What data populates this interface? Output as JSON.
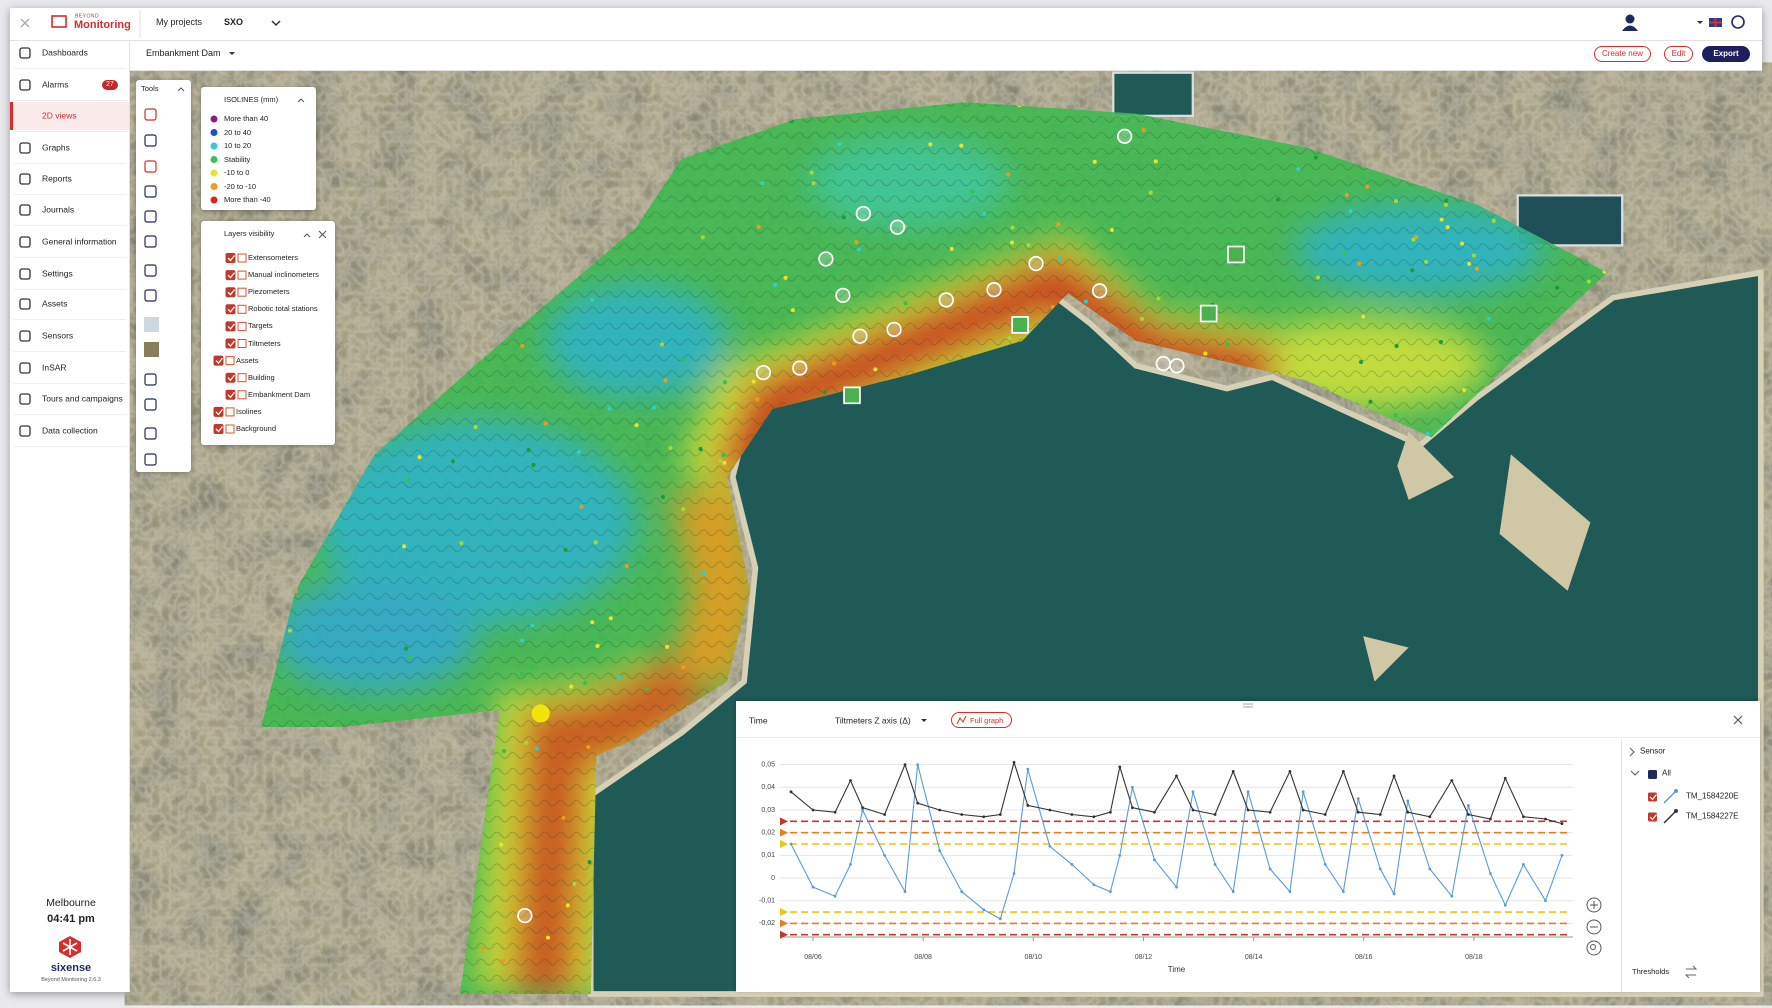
{
  "header": {
    "brand_tagline": "BEYOND",
    "brand": "Monitoring",
    "my_projects": "My projects",
    "project": "SXO"
  },
  "toolbar": {
    "view": "Embankment Dam",
    "actions": [
      "Create new",
      "Edit",
      "Export"
    ]
  },
  "sidebar": {
    "items": [
      {
        "label": "Dashboards"
      },
      {
        "label": "Alarms",
        "badge": "27"
      },
      {
        "label": "2D views",
        "active": true
      },
      {
        "label": "Graphs"
      },
      {
        "label": "Reports"
      },
      {
        "label": "Journals"
      },
      {
        "label": "General information"
      },
      {
        "label": "Settings"
      },
      {
        "label": "Assets"
      },
      {
        "label": "Sensors"
      },
      {
        "label": "InSAR"
      },
      {
        "label": "Tours and campaigns"
      },
      {
        "label": "Data collection"
      }
    ],
    "footer": {
      "city": "Melbourne",
      "time": "04:41 pm",
      "company": "sixense",
      "version": "Beyond Monitoring 2.6.3"
    }
  },
  "tools": {
    "title": "Tools"
  },
  "isolines": {
    "title": "ISOLINES (mm)",
    "items": [
      {
        "label": "More than 40",
        "color": "#8e1a7a"
      },
      {
        "label": "20 to 40",
        "color": "#1f4fc4"
      },
      {
        "label": "10 to 20",
        "color": "#35c7d6"
      },
      {
        "label": "Stability",
        "color": "#3fbf4f"
      },
      {
        "label": "-10 to 0",
        "color": "#e8e231"
      },
      {
        "label": "-20 to -10",
        "color": "#f29a1b"
      },
      {
        "label": "More than -40",
        "color": "#e0231c"
      }
    ]
  },
  "layers": {
    "title": "Layers visibility",
    "items": [
      {
        "label": "Extensometers",
        "level": 1,
        "checked": true
      },
      {
        "label": "Manual inclinometers",
        "level": 1,
        "checked": true
      },
      {
        "label": "Piezometers",
        "level": 1,
        "checked": true
      },
      {
        "label": "Robotic total stations",
        "level": 1,
        "checked": true
      },
      {
        "label": "Targets",
        "level": 1,
        "checked": true
      },
      {
        "label": "Tiltmeters",
        "level": 1,
        "checked": true
      },
      {
        "label": "Assets",
        "level": 0,
        "checked": true
      },
      {
        "label": "Building",
        "level": 1,
        "checked": true
      },
      {
        "label": "Embankment Dam",
        "level": 1,
        "checked": true
      },
      {
        "label": "Isolines",
        "level": 0,
        "checked": true
      },
      {
        "label": "Background",
        "level": 0,
        "checked": true
      }
    ]
  },
  "graph": {
    "time_tab": "Time",
    "measure": "Tiltmeters Z axis (Δ)",
    "full_graph": "Full graph",
    "sensor_title": "Sensor",
    "all": "All",
    "thresholds_label": "Thresholds",
    "chart_data": {
      "type": "line",
      "x_label": "Time",
      "x": [
        5.6,
        6.0,
        6.4,
        6.68,
        6.9,
        7.3,
        7.67,
        7.9,
        8.3,
        8.7,
        9.1,
        9.4,
        9.65,
        9.9,
        10.3,
        10.7,
        11.1,
        11.4,
        11.57,
        11.8,
        12.2,
        12.6,
        12.9,
        13.3,
        13.63,
        13.9,
        14.3,
        14.66,
        14.9,
        15.3,
        15.63,
        15.9,
        16.3,
        16.55,
        16.8,
        17.2,
        17.6,
        17.9,
        18.3,
        18.57,
        18.9,
        19.3,
        19.6
      ],
      "xlim": [
        5.4,
        19.8
      ],
      "xticks": [
        {
          "value": 6,
          "label": "08/06"
        },
        {
          "value": 8,
          "label": "08/08"
        },
        {
          "value": 10,
          "label": "08/10"
        },
        {
          "value": 12,
          "label": "08/12"
        },
        {
          "value": 14,
          "label": "08/14"
        },
        {
          "value": 16,
          "label": "08/16"
        },
        {
          "value": 18,
          "label": "08/18"
        }
      ],
      "ylim": [
        -0.026,
        0.056
      ],
      "yticks": [
        {
          "value": 0.05,
          "label": "0,05"
        },
        {
          "value": 0.04,
          "label": "0,04"
        },
        {
          "value": 0.03,
          "label": "0,03"
        },
        {
          "value": 0.02,
          "label": "0,02"
        },
        {
          "value": 0.01,
          "label": "0,01"
        },
        0,
        {
          "value": -0.01,
          "label": "-0,01"
        },
        {
          "value": -0.02,
          "label": "-0,02"
        }
      ],
      "grid": true,
      "series": [
        {
          "name": "TM_1584220E",
          "color": "#5b9bd5",
          "values": [
            0.015,
            -0.004,
            -0.008,
            0.006,
            0.03,
            0.01,
            -0.006,
            0.05,
            0.012,
            -0.006,
            -0.014,
            -0.018,
            0.002,
            0.048,
            0.014,
            0.006,
            -0.003,
            -0.006,
            0.01,
            0.04,
            0.008,
            -0.004,
            0.038,
            0.006,
            -0.006,
            0.038,
            0.004,
            -0.006,
            0.038,
            0.006,
            -0.006,
            0.035,
            0.004,
            -0.007,
            0.034,
            0.004,
            -0.008,
            0.032,
            0.002,
            -0.012,
            0.006,
            -0.01,
            0.01
          ]
        },
        {
          "name": "TM_1584227E",
          "color": "#333333",
          "values": [
            0.038,
            0.03,
            0.029,
            0.043,
            0.031,
            0.028,
            0.05,
            0.033,
            0.03,
            0.028,
            0.027,
            0.028,
            0.051,
            0.032,
            0.03,
            0.028,
            0.027,
            0.029,
            0.049,
            0.031,
            0.029,
            0.045,
            0.03,
            0.028,
            0.047,
            0.03,
            0.029,
            0.047,
            0.03,
            0.028,
            0.047,
            0.029,
            0.028,
            0.045,
            0.029,
            0.027,
            0.043,
            0.028,
            0.026,
            0.044,
            0.027,
            0.026,
            0.024
          ]
        }
      ],
      "thresholds": [
        {
          "value": 0.025,
          "color": "#c0392b"
        },
        {
          "value": 0.02,
          "color": "#e67e22"
        },
        {
          "value": 0.015,
          "color": "#f1c40f"
        },
        {
          "value": -0.015,
          "color": "#f1c40f"
        },
        {
          "value": -0.02,
          "color": "#e67e22"
        },
        {
          "value": -0.025,
          "color": "#c0392b"
        }
      ]
    }
  }
}
